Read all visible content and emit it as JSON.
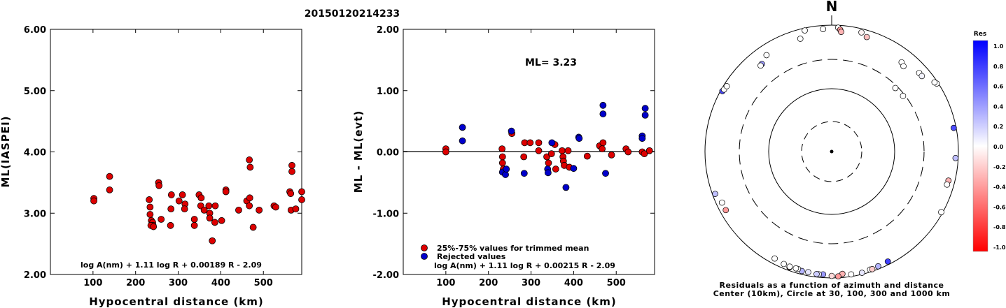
{
  "title": "20150120214233",
  "colors": {
    "accepted": "#dd0000",
    "rejected": "#0000cc",
    "axis": "#000000"
  },
  "chart_data": [
    {
      "type": "scatter",
      "xlabel": "Hypocentral distance (km)",
      "ylabel": "ML(IASPEI)",
      "xlim": [
        0,
        590
      ],
      "ylim": [
        2.0,
        6.0
      ],
      "xticks": [
        "100",
        "200",
        "300",
        "400",
        "500"
      ],
      "yticks": [
        "2.00",
        "3.00",
        "4.00",
        "5.00",
        "6.00"
      ],
      "formula": "log A(nm) + 1.11 log R + 0.00189 R - 2.09",
      "points": [
        [
          102,
          3.24
        ],
        [
          102,
          3.2
        ],
        [
          139,
          3.6
        ],
        [
          139,
          3.38
        ],
        [
          232,
          3.22
        ],
        [
          234,
          3.1
        ],
        [
          234,
          2.98
        ],
        [
          237,
          2.88
        ],
        [
          240,
          2.85
        ],
        [
          241,
          2.8
        ],
        [
          236,
          2.8
        ],
        [
          242,
          2.78
        ],
        [
          254,
          3.5
        ],
        [
          255,
          3.45
        ],
        [
          260,
          2.9
        ],
        [
          284,
          3.3
        ],
        [
          283,
          3.07
        ],
        [
          282,
          2.8
        ],
        [
          302,
          3.2
        ],
        [
          310,
          3.3
        ],
        [
          316,
          3.15
        ],
        [
          315,
          3.07
        ],
        [
          338,
          2.9
        ],
        [
          338,
          2.8
        ],
        [
          349,
          3.3
        ],
        [
          354,
          3.25
        ],
        [
          353,
          3.12
        ],
        [
          361,
          3.05
        ],
        [
          372,
          3.12
        ],
        [
          374,
          3.0
        ],
        [
          374,
          2.92
        ],
        [
          380,
          2.55
        ],
        [
          387,
          3.12
        ],
        [
          386,
          2.85
        ],
        [
          402,
          2.88
        ],
        [
          412,
          3.38
        ],
        [
          412,
          3.35
        ],
        [
          442,
          3.05
        ],
        [
          461,
          3.2
        ],
        [
          467,
          3.87
        ],
        [
          469,
          3.75
        ],
        [
          468,
          3.25
        ],
        [
          467,
          3.12
        ],
        [
          476,
          2.77
        ],
        [
          490,
          3.05
        ],
        [
          525,
          3.12
        ],
        [
          529,
          3.1
        ],
        [
          562,
          3.35
        ],
        [
          564,
          3.32
        ],
        [
          567,
          3.78
        ],
        [
          567,
          3.68
        ],
        [
          565,
          3.05
        ],
        [
          576,
          3.07
        ],
        [
          590,
          3.35
        ],
        [
          590,
          3.22
        ]
      ]
    },
    {
      "type": "scatter",
      "xlabel": "Hypocentral distance (km)",
      "ylabel": "ML - ML(evt)",
      "xlim": [
        0,
        590
      ],
      "ylim": [
        -2.0,
        2.0
      ],
      "xticks": [
        "100",
        "200",
        "300",
        "400",
        "500"
      ],
      "yticks": [
        "-2.00",
        "-1.00",
        "0.00",
        "1.00",
        "2.00"
      ],
      "annotation": "ML= 3.23",
      "formula": "log A(nm) + 1.11 log R + 0.00215 R - 2.09",
      "legend": [
        "25%-75% values for trimmed mean",
        "Rejected values"
      ],
      "accepted": [
        [
          100,
          0.05
        ],
        [
          100,
          0.0
        ],
        [
          232,
          0.05
        ],
        [
          233,
          -0.08
        ],
        [
          233,
          -0.18
        ],
        [
          235,
          -0.28
        ],
        [
          255,
          0.3
        ],
        [
          285,
          0.15
        ],
        [
          283,
          -0.08
        ],
        [
          298,
          0.15
        ],
        [
          318,
          0.15
        ],
        [
          318,
          0.02
        ],
        [
          337,
          -0.08
        ],
        [
          341,
          -0.18
        ],
        [
          348,
          -0.03
        ],
        [
          356,
          0.12
        ],
        [
          358,
          -0.28
        ],
        [
          373,
          0.02
        ],
        [
          375,
          -0.08
        ],
        [
          376,
          -0.15
        ],
        [
          378,
          -0.22
        ],
        [
          387,
          0.02
        ],
        [
          390,
          -0.25
        ],
        [
          432,
          -0.07
        ],
        [
          461,
          0.1
        ],
        [
          469,
          0.15
        ],
        [
          467,
          0.05
        ],
        [
          489,
          -0.05
        ],
        [
          523,
          0.05
        ],
        [
          528,
          0.0
        ],
        [
          561,
          0.0
        ],
        [
          566,
          -0.03
        ],
        [
          578,
          0.02
        ]
      ],
      "rejected": [
        [
          139,
          0.4
        ],
        [
          139,
          0.18
        ],
        [
          233,
          -0.33
        ],
        [
          240,
          -0.37
        ],
        [
          242,
          -0.28
        ],
        [
          254,
          0.34
        ],
        [
          284,
          -0.35
        ],
        [
          339,
          -0.28
        ],
        [
          340,
          -0.34
        ],
        [
          349,
          0.15
        ],
        [
          382,
          -0.58
        ],
        [
          400,
          -0.27
        ],
        [
          412,
          0.24
        ],
        [
          413,
          0.22
        ],
        [
          469,
          0.76
        ],
        [
          469,
          0.62
        ],
        [
          475,
          -0.35
        ],
        [
          561,
          0.26
        ],
        [
          561,
          0.22
        ],
        [
          568,
          0.71
        ],
        [
          568,
          0.6
        ]
      ]
    }
  ],
  "polar": {
    "north_label": "N",
    "caption_line1": "Residuals as a function of azimuth and distance",
    "caption_line2": "Center (10km), Circle at 30, 100, 300 and 1000 km",
    "colorbar_title": "Res",
    "colorbar_ticks": [
      "1.0",
      "0.8",
      "0.6",
      "0.4",
      "0.2",
      "0.0",
      "-0.2",
      "-0.4",
      "-0.6",
      "-0.8",
      "-1.0"
    ],
    "stations": [
      {
        "az": -12.5,
        "dist": 920,
        "res": 0.0
      },
      {
        "az": -4.0,
        "dist": 880,
        "res": 0.0
      },
      {
        "az": 3.0,
        "dist": 920,
        "res": 0.0
      },
      {
        "az": 4.0,
        "dist": 860,
        "res": -0.4
      },
      {
        "az": 4.5,
        "dist": 800,
        "res": -0.3
      },
      {
        "az": 14.0,
        "dist": 880,
        "res": -0.05
      },
      {
        "az": 17.0,
        "dist": 790,
        "res": -0.25
      },
      {
        "az": -15.5,
        "dist": 720,
        "res": 0.0
      },
      {
        "az": -38.5,
        "dist": 600,
        "res": 0.4
      },
      {
        "az": -39.5,
        "dist": 590,
        "res": 0.0
      },
      {
        "az": 38.0,
        "dist": 630,
        "res": 0.0
      },
      {
        "az": 40.0,
        "dist": 590,
        "res": 0.0
      },
      {
        "az": 48.0,
        "dist": 730,
        "res": 0.0
      },
      {
        "az": 50.0,
        "dist": 730,
        "res": 0.05
      },
      {
        "az": 57.0,
        "dist": 950,
        "res": 0.0
      },
      {
        "az": 56.0,
        "dist": 910,
        "res": 0.0
      },
      {
        "az": 45.0,
        "dist": 275,
        "res": 0.0
      },
      {
        "az": 52.0,
        "dist": 280,
        "res": 0.0
      },
      {
        "az": 79.0,
        "dist": 920,
        "res": 0.7
      },
      {
        "az": 93.0,
        "dist": 910,
        "res": 0.25
      },
      {
        "az": 104.0,
        "dist": 800,
        "res": -0.3
      },
      {
        "az": 106.0,
        "dist": 790,
        "res": 0.0
      },
      {
        "az": 119.0,
        "dist": 950,
        "res": 0.0
      },
      {
        "az": 153.0,
        "dist": 900,
        "res": 0.75
      },
      {
        "az": 162.0,
        "dist": 920,
        "res": 0.0
      },
      {
        "az": 166.0,
        "dist": 950,
        "res": 0.1
      },
      {
        "az": 158.0,
        "dist": 910,
        "res": 0.3
      },
      {
        "az": 161.0,
        "dist": 930,
        "res": -0.2
      },
      {
        "az": 171.0,
        "dist": 930,
        "res": 0.0
      },
      {
        "az": 175.0,
        "dist": 880,
        "res": -0.3
      },
      {
        "az": 177.0,
        "dist": 950,
        "res": -0.4
      },
      {
        "az": 180.0,
        "dist": 930,
        "res": -0.15
      },
      {
        "az": 184.0,
        "dist": 890,
        "res": 0.4
      },
      {
        "az": 186.0,
        "dist": 900,
        "res": 0.1
      },
      {
        "az": 187.0,
        "dist": 900,
        "res": 0.2
      },
      {
        "az": 191.0,
        "dist": 880,
        "res": 0.1
      },
      {
        "az": 194.0,
        "dist": 890,
        "res": 0.3
      },
      {
        "az": 196.0,
        "dist": 860,
        "res": 0.0
      },
      {
        "az": 197.0,
        "dist": 860,
        "res": 0.0
      },
      {
        "az": 200.0,
        "dist": 890,
        "res": -0.35
      },
      {
        "az": 200.0,
        "dist": 870,
        "res": 0.0
      },
      {
        "az": 203.0,
        "dist": 860,
        "res": 0.0
      },
      {
        "az": 208.0,
        "dist": 830,
        "res": 0.0
      },
      {
        "az": 241.0,
        "dist": 820,
        "res": -0.4
      },
      {
        "az": 245.0,
        "dist": 820,
        "res": 0.0
      },
      {
        "az": 250.0,
        "dist": 910,
        "res": 0.25
      },
      {
        "az": 299.0,
        "dist": 940,
        "res": 0.7
      },
      {
        "az": 300.0,
        "dist": 920,
        "res": 0.0
      },
      {
        "az": 302.0,
        "dist": 900,
        "res": 0.0
      },
      {
        "az": 326.0,
        "dist": 700,
        "res": 0.0
      }
    ]
  }
}
